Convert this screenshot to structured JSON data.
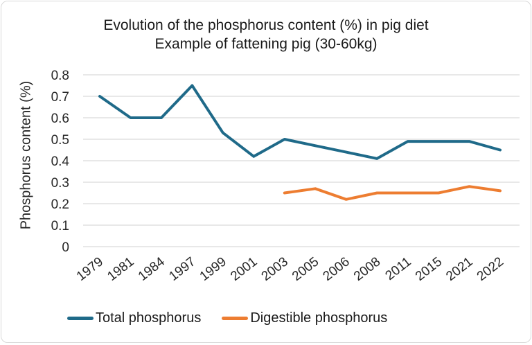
{
  "chart_data": {
    "type": "line",
    "title": "Evolution of the phosphorus content (%) in pig diet",
    "subtitle": "Example of fattening pig (30-60kg)",
    "ylabel": "Phosphorus content (%)",
    "xlabel": "",
    "categories": [
      "1979",
      "1981",
      "1984",
      "1997",
      "1999",
      "2001",
      "2003",
      "2005",
      "2006",
      "2008",
      "2011",
      "2015",
      "2021",
      "2022"
    ],
    "series": [
      {
        "name": "Total phosphorus",
        "color": "#1F6A89",
        "values": [
          0.7,
          0.6,
          0.6,
          0.75,
          0.53,
          0.42,
          0.5,
          0.47,
          0.44,
          0.41,
          0.49,
          0.49,
          0.49,
          0.45
        ]
      },
      {
        "name": "Digestible phosphorus",
        "color": "#ED7D31",
        "values": [
          null,
          null,
          null,
          null,
          null,
          null,
          0.25,
          0.27,
          0.22,
          0.25,
          0.25,
          0.25,
          0.28,
          0.26
        ]
      }
    ],
    "ylim": [
      0,
      0.8
    ],
    "yticks": [
      0,
      0.1,
      0.2,
      0.3,
      0.4,
      0.5,
      0.6,
      0.7,
      0.8
    ],
    "ytick_labels": [
      "0",
      "0.1",
      "0.2",
      "0.3",
      "0.4",
      "0.5",
      "0.6",
      "0.7",
      "0.8"
    ],
    "grid": "horizontal",
    "gridline_color": "#D9D9D9",
    "legend_position": "bottom",
    "text_color": "#262626",
    "background": "#FFFFFF",
    "border_color": "#D8D8D8"
  }
}
